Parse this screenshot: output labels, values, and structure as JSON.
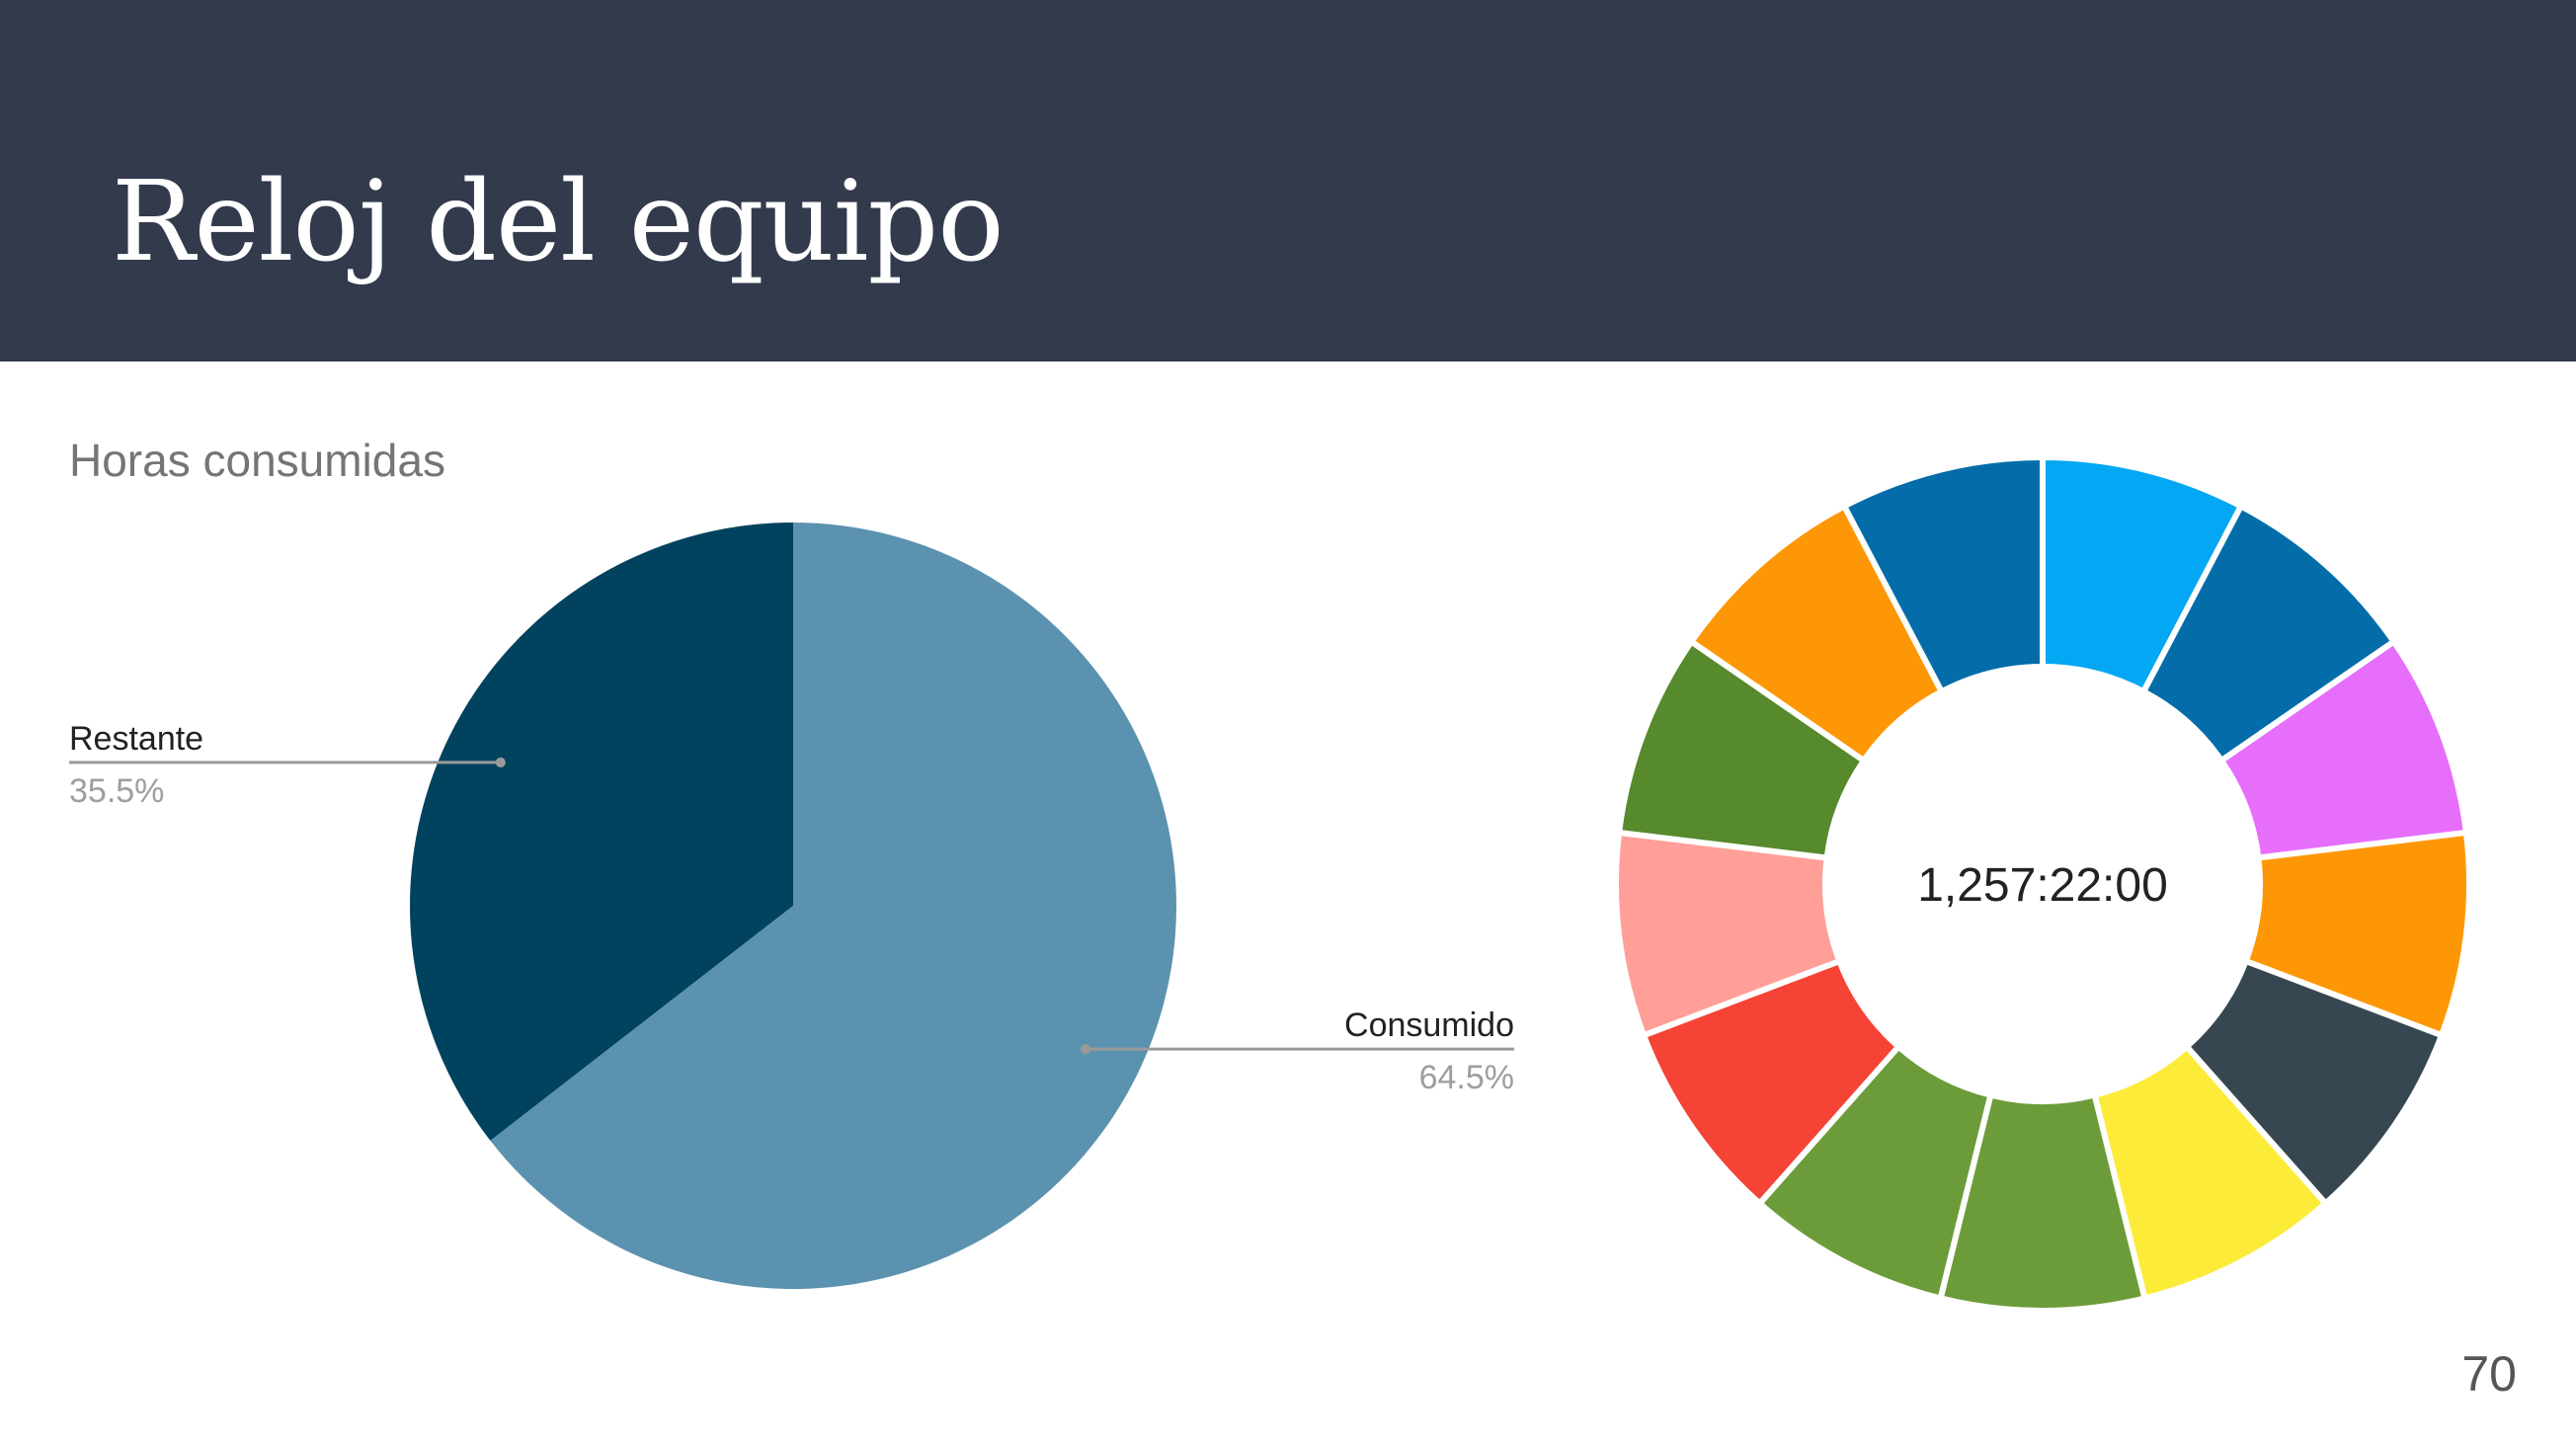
{
  "slide": {
    "title": "Reloj del equipo",
    "page_number": "70"
  },
  "chart_data": [
    {
      "type": "pie",
      "title": "Horas consumidas",
      "slices": [
        {
          "label": "Consumido",
          "value": 64.5,
          "display": "64.5%",
          "color": "#5b92af"
        },
        {
          "label": "Restante",
          "value": 35.5,
          "display": "35.5%",
          "color": "#01435f"
        }
      ],
      "legend": "none"
    },
    {
      "type": "pie",
      "variant": "donut",
      "center_text": "1,257:22:00",
      "slices": [
        {
          "value": 1,
          "color": "#03a7f3"
        },
        {
          "value": 1,
          "color": "#046da9"
        },
        {
          "value": 1,
          "color": "#e66efa"
        },
        {
          "value": 1,
          "color": "#fe9705"
        },
        {
          "value": 1,
          "color": "#374752"
        },
        {
          "value": 1,
          "color": "#fdeb3a"
        },
        {
          "value": 1,
          "color": "#6c9c39"
        },
        {
          "value": 1,
          "color": "#6c9c39"
        },
        {
          "value": 1,
          "color": "#f54335"
        },
        {
          "value": 1,
          "color": "#ff9f98"
        },
        {
          "value": 1,
          "color": "#568a2d"
        },
        {
          "value": 1,
          "color": "#fe9705"
        },
        {
          "value": 1,
          "color": "#046da9"
        }
      ]
    }
  ]
}
